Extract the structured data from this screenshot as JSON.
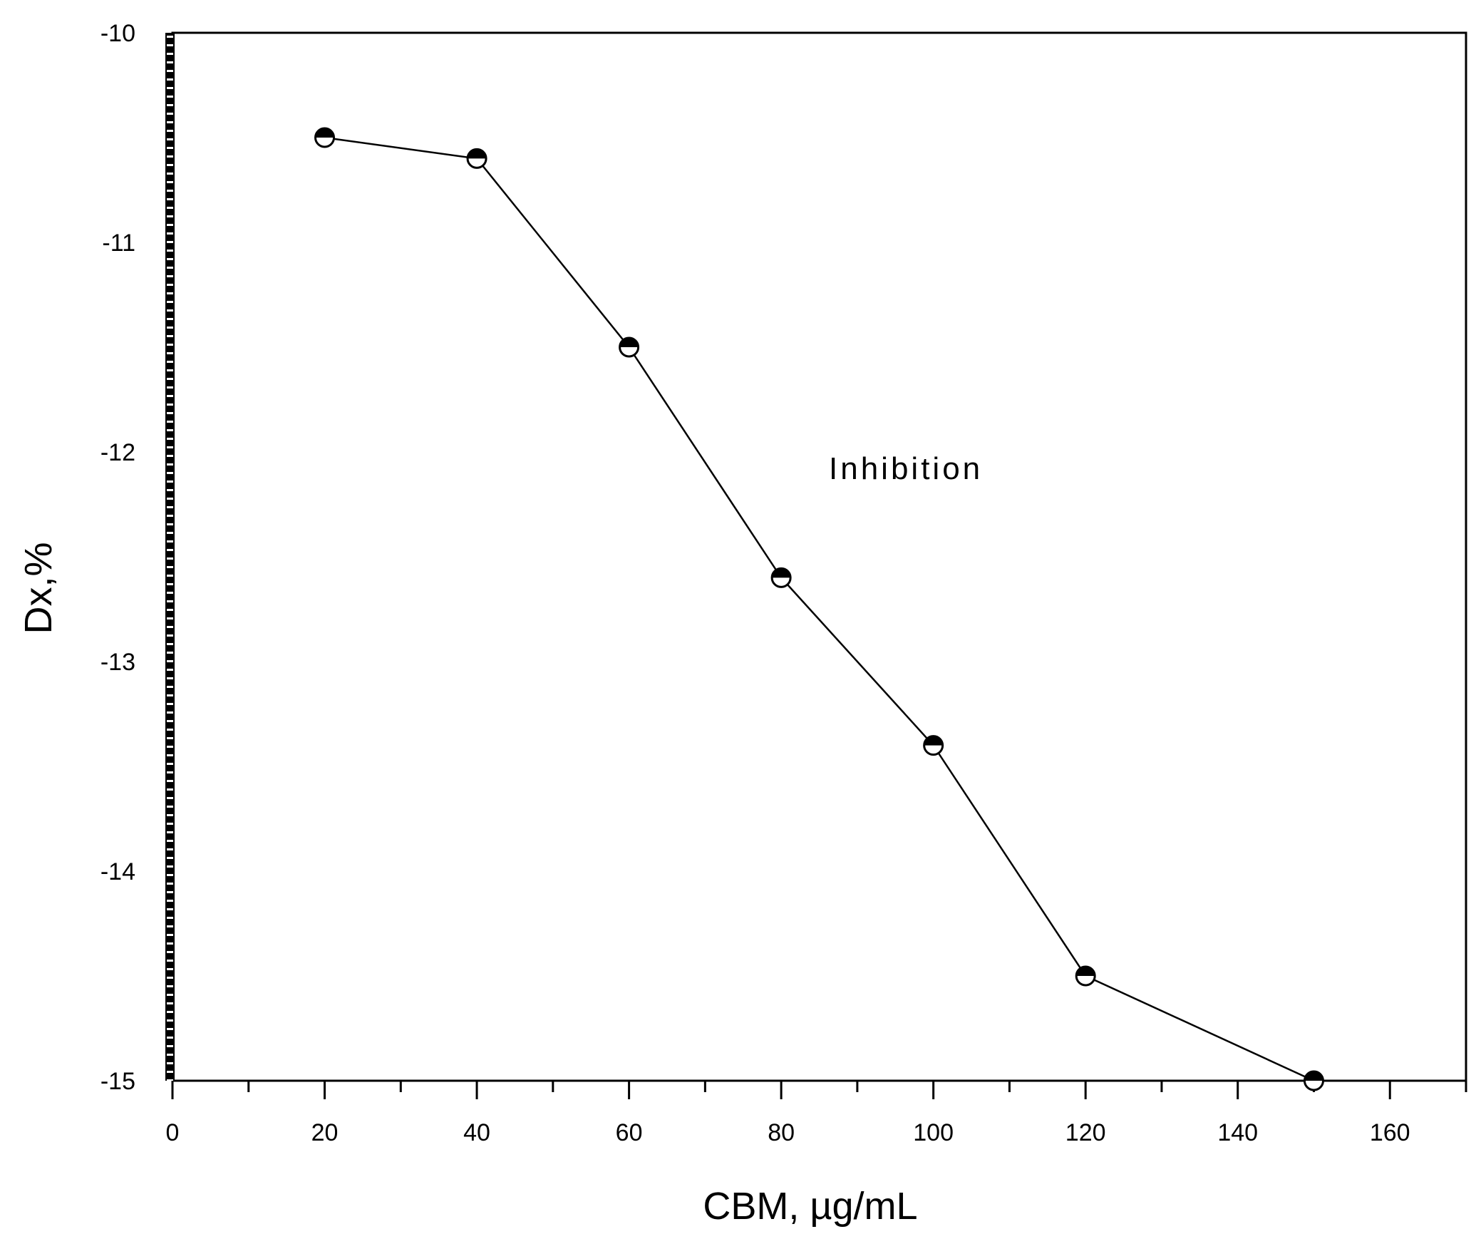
{
  "chart_data": {
    "type": "line",
    "title": "",
    "xlabel": "CBM, µg/mL",
    "ylabel": "Dx,%",
    "xlim": [
      0,
      170
    ],
    "ylim": [
      -15,
      -10
    ],
    "x_ticks": [
      0,
      20,
      40,
      60,
      80,
      100,
      120,
      140,
      160
    ],
    "y_ticks": [
      -10,
      -11,
      -12,
      -13,
      -14,
      -15
    ],
    "x_tick_labels": [
      "0",
      "20",
      "40",
      "60",
      "80",
      "100",
      "120",
      "140",
      "160"
    ],
    "y_tick_labels": [
      "-10",
      "-11",
      "-12",
      "-13",
      "-14",
      "-15"
    ],
    "grid": false,
    "annotation": "Inhibition",
    "series": [
      {
        "x": [
          20,
          40,
          60,
          80,
          100,
          120,
          150
        ],
        "y": [
          -10.5,
          -10.6,
          -11.5,
          -12.6,
          -13.4,
          -14.5,
          -15.0
        ]
      }
    ],
    "colors": {
      "line": "#000000",
      "marker_top": "#000000",
      "marker_bottom": "#ffffff"
    }
  }
}
